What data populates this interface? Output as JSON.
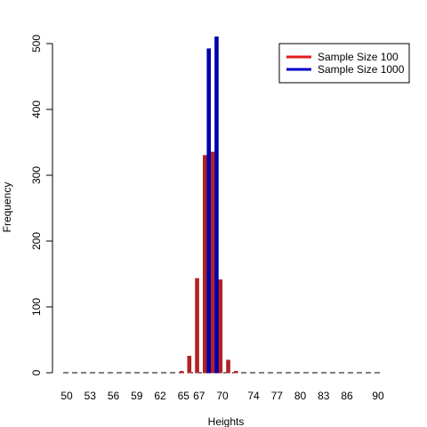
{
  "chart_data": {
    "type": "bar",
    "title": "",
    "xlabel": "Heights",
    "ylabel": "Frequency",
    "ylim": [
      0,
      500
    ],
    "y_ticks": [
      0,
      100,
      200,
      300,
      400,
      500
    ],
    "x_tick_labels": [
      "50",
      "53",
      "56",
      "59",
      "62",
      "65",
      "67",
      "70",
      "74",
      "77",
      "80",
      "83",
      "86",
      "90"
    ],
    "x": [
      50,
      51,
      52,
      53,
      54,
      55,
      56,
      57,
      58,
      59,
      60,
      61,
      62,
      63,
      64,
      65,
      66,
      67,
      68,
      69,
      70,
      71,
      72,
      73,
      74,
      75,
      76,
      77,
      78,
      79,
      80,
      81,
      82,
      83,
      84,
      85,
      86,
      87,
      88,
      89,
      90
    ],
    "series": [
      {
        "name": "Sample Size 100",
        "color": "#b22222",
        "values": [
          0,
          0,
          0,
          0,
          0,
          0,
          0,
          0,
          0,
          0,
          0,
          0,
          0,
          0,
          0,
          2,
          25,
          143,
          330,
          335,
          141,
          19,
          2,
          0,
          0,
          0,
          0,
          0,
          0,
          0,
          0,
          0,
          0,
          0,
          0,
          0,
          0,
          0,
          0,
          0,
          0
        ]
      },
      {
        "name": "Sample Size 1000",
        "color": "#0000aa",
        "values": [
          0,
          0,
          0,
          0,
          0,
          0,
          0,
          0,
          0,
          0,
          0,
          0,
          0,
          0,
          0,
          0,
          0,
          0,
          492,
          510,
          0,
          0,
          0,
          0,
          0,
          0,
          0,
          0,
          0,
          0,
          0,
          0,
          0,
          0,
          0,
          0,
          0,
          0,
          0,
          0,
          0
        ]
      }
    ],
    "legend": {
      "position": "top-right",
      "entries": [
        {
          "label": "Sample Size 100",
          "color": "#e31a1c"
        },
        {
          "label": "Sample Size 1000",
          "color": "#0000cc"
        }
      ]
    }
  }
}
